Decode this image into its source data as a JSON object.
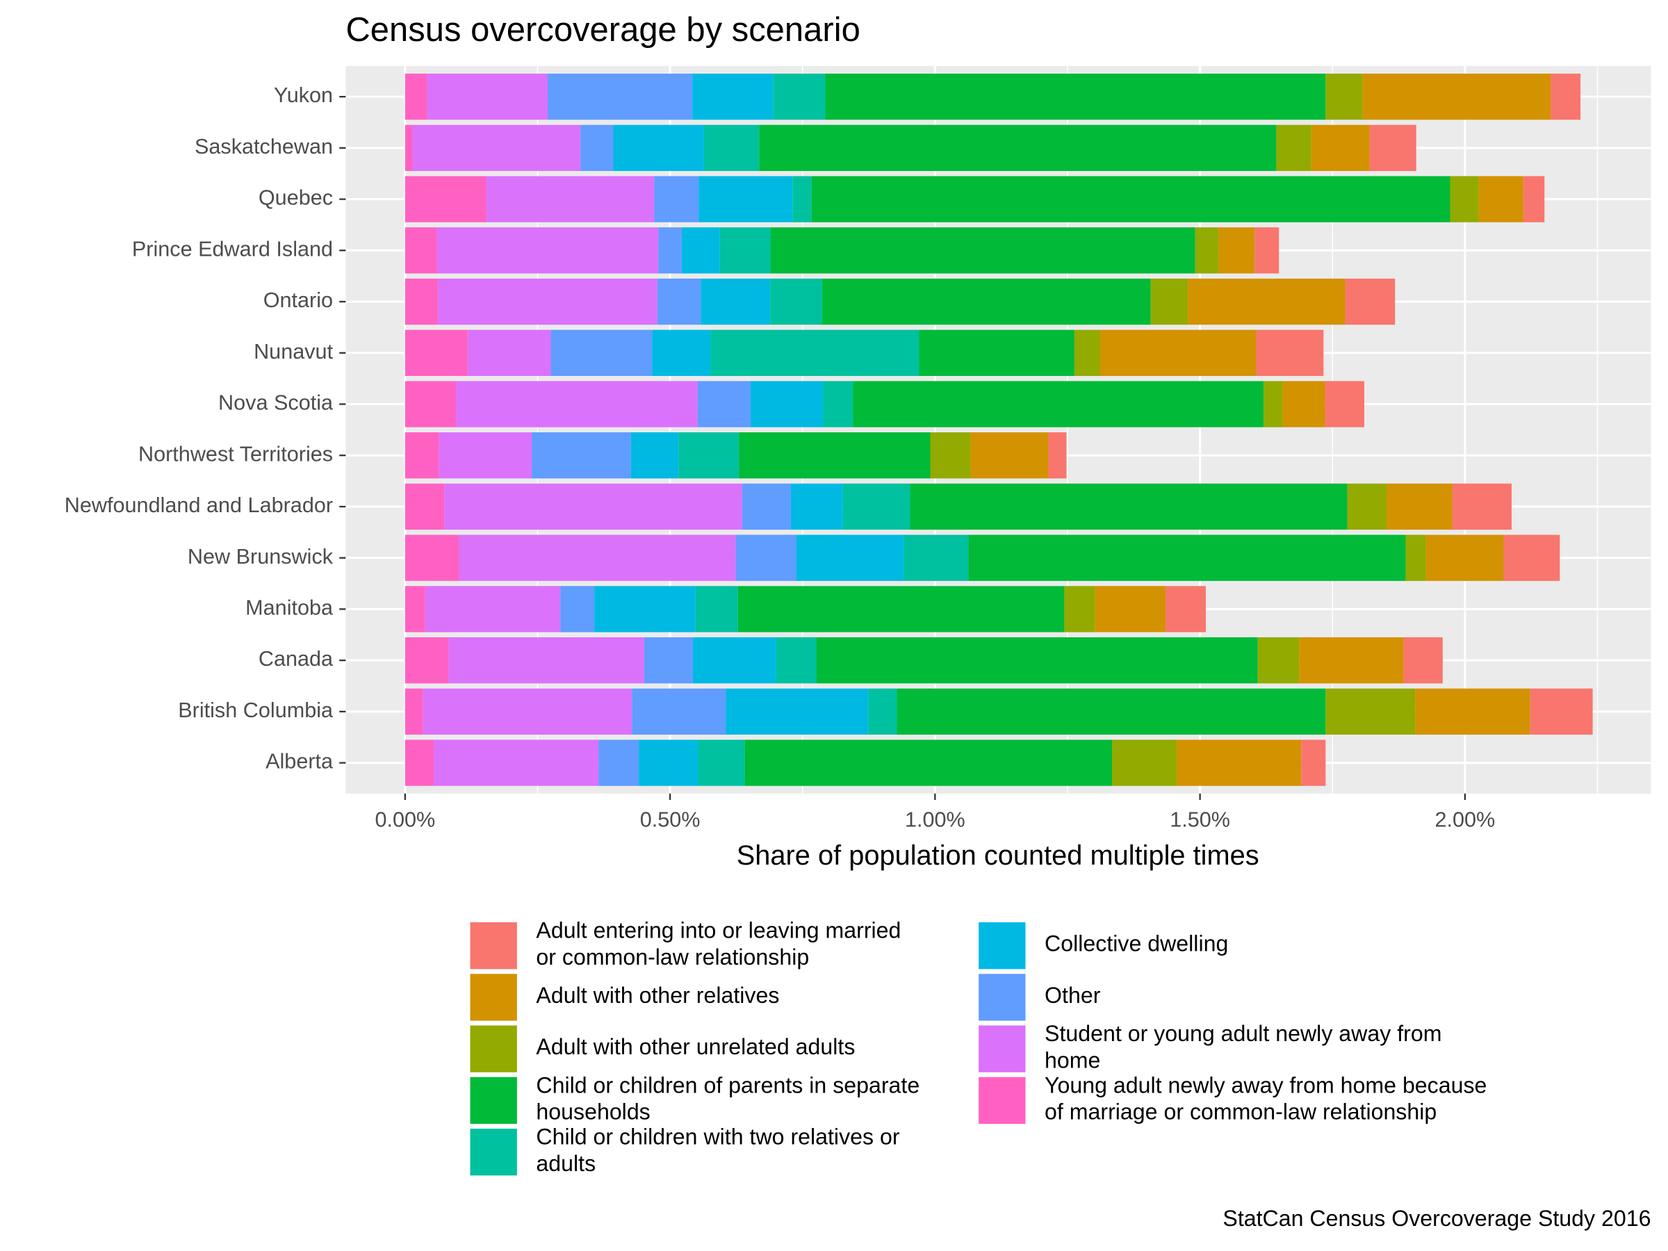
{
  "chart_data": {
    "type": "stacked_barh",
    "title": "Census overcoverage by scenario",
    "xlabel": "Share of population counted multiple times",
    "caption": "StatCan Census Overcoverage Study 2016",
    "categories": [
      "Alberta",
      "British Columbia",
      "Canada",
      "Manitoba",
      "New Brunswick",
      "Newfoundland and Labrador",
      "Northwest Territories",
      "Nova Scotia",
      "Nunavut",
      "Ontario",
      "Prince Edward Island",
      "Quebec",
      "Saskatchewan",
      "Yukon"
    ],
    "series": [
      {
        "name": "Adult entering into or leaving married or common-law relationship",
        "color": "#F8766D",
        "values": [
          0.046,
          0.118,
          0.074,
          0.076,
          0.106,
          0.112,
          0.034,
          0.074,
          0.127,
          0.094,
          0.046,
          0.04,
          0.088,
          0.056
        ]
      },
      {
        "name": "Adult with other relatives",
        "color": "#D39200",
        "values": [
          0.235,
          0.217,
          0.197,
          0.133,
          0.147,
          0.124,
          0.147,
          0.08,
          0.295,
          0.297,
          0.068,
          0.084,
          0.11,
          0.355
        ]
      },
      {
        "name": "Adult with other unrelated adults",
        "color": "#93AA00",
        "values": [
          0.122,
          0.169,
          0.078,
          0.058,
          0.038,
          0.074,
          0.076,
          0.036,
          0.048,
          0.07,
          0.044,
          0.054,
          0.066,
          0.07
        ]
      },
      {
        "name": "Child or children of parents in separate households",
        "color": "#00BA38",
        "values": [
          0.693,
          0.809,
          0.833,
          0.616,
          0.825,
          0.825,
          0.361,
          0.775,
          0.293,
          0.62,
          0.801,
          1.205,
          0.976,
          0.944
        ]
      },
      {
        "name": "Child or children with two relatives or adults",
        "color": "#00C19F",
        "values": [
          0.088,
          0.054,
          0.076,
          0.08,
          0.122,
          0.127,
          0.114,
          0.056,
          0.394,
          0.098,
          0.096,
          0.036,
          0.104,
          0.098
        ]
      },
      {
        "name": "Collective dwelling",
        "color": "#00B9E3",
        "values": [
          0.112,
          0.269,
          0.157,
          0.191,
          0.203,
          0.098,
          0.09,
          0.137,
          0.11,
          0.131,
          0.072,
          0.177,
          0.171,
          0.153
        ]
      },
      {
        "name": "Other",
        "color": "#619CFF",
        "values": [
          0.076,
          0.177,
          0.092,
          0.064,
          0.114,
          0.092,
          0.187,
          0.1,
          0.191,
          0.082,
          0.044,
          0.084,
          0.062,
          0.273
        ]
      },
      {
        "name": "Student or young adult newly away from home",
        "color": "#DB72FB",
        "values": [
          0.311,
          0.394,
          0.369,
          0.255,
          0.522,
          0.562,
          0.175,
          0.456,
          0.157,
          0.414,
          0.418,
          0.317,
          0.317,
          0.227
        ]
      },
      {
        "name": "Young adult newly away from home because of marriage or common-law relationship",
        "color": "#FF61C3",
        "values": [
          0.054,
          0.034,
          0.082,
          0.038,
          0.102,
          0.074,
          0.064,
          0.096,
          0.118,
          0.062,
          0.06,
          0.153,
          0.014,
          0.042
        ]
      }
    ],
    "xlim": [
      -0.112,
      2.351
    ],
    "xticks": [
      {
        "value": 0,
        "label": "0.00%"
      },
      {
        "value": 0.5,
        "label": "0.50%"
      },
      {
        "value": 1,
        "label": "1.00%"
      },
      {
        "value": 1.5,
        "label": "1.50%"
      },
      {
        "value": 2,
        "label": "2.00%"
      }
    ],
    "grid": true
  }
}
